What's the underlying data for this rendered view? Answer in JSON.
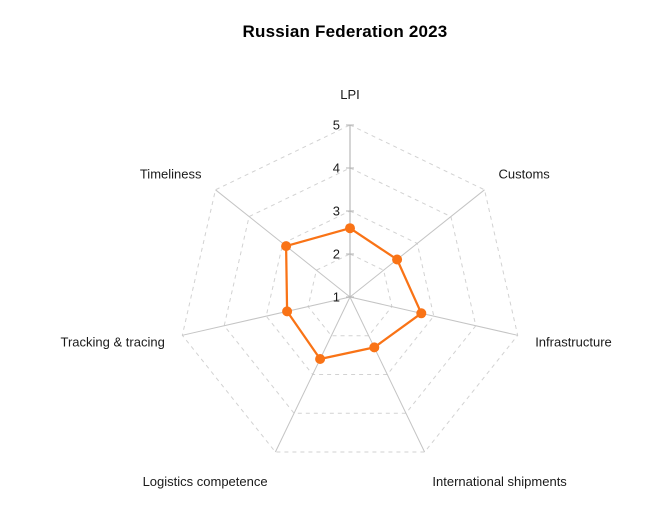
{
  "chart_data": {
    "type": "radar",
    "title": "Russian Federation 2023",
    "categories": [
      "LPI",
      "Customs",
      "Infrastructure",
      "International shipments",
      "Logistics competence",
      "Tracking & tracing",
      "Timeliness"
    ],
    "series": [
      {
        "name": "Russian Federation 2023",
        "values": [
          2.6,
          2.4,
          2.7,
          2.3,
          2.6,
          2.5,
          2.9
        ]
      }
    ],
    "scale": {
      "min": 1,
      "max": 5,
      "ticks": [
        1,
        2,
        3,
        4,
        5
      ]
    },
    "grid": {
      "rings": "dashed",
      "spokes": "solid",
      "shape": "polygon"
    },
    "legend_position": "none",
    "colors": {
      "series": "#f97316",
      "marker": "#f97316",
      "spoke": "#c4c4c4",
      "ring": "#d2d2d2",
      "axis": "#ababab",
      "tick_mark": "#b5b5b5",
      "text": "#1a1a1a",
      "background": "#ffffff"
    }
  }
}
